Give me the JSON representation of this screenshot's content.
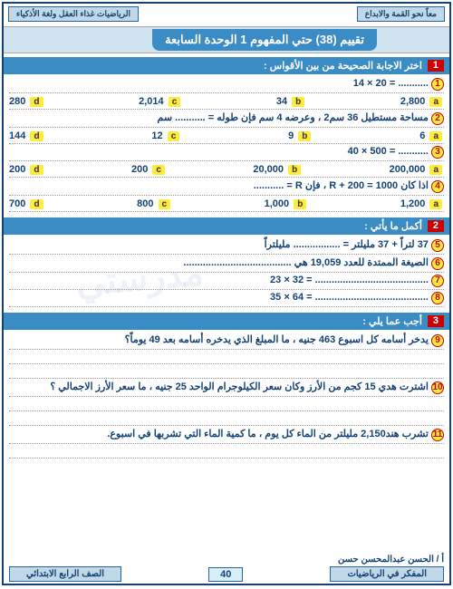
{
  "header": {
    "right": "معاً نحو القمة والابداع",
    "left": "الرياضيات غذاء العقل ولغة الأذكياء"
  },
  "title": "تقييم (38) حتي المفهوم 1 الوحدة السابعة",
  "s1": {
    "num": "1",
    "title": "اختر الاجابة الصحيحة من بين الأقواس :",
    "r1": {
      "n": "1",
      "q": "........... = 20 × 14"
    },
    "r2": {
      "a": "2,800",
      "b": "34",
      "c": "2,014",
      "d": "280"
    },
    "r3": {
      "n": "2",
      "q": "مساحة مستطيل 36 سم2 ، وعرضه 4 سم فإن طوله = ........... سم"
    },
    "r4": {
      "a": "6",
      "b": "9",
      "c": "12",
      "d": "144"
    },
    "r5": {
      "n": "3",
      "q": "........... = 500 × 40"
    },
    "r6": {
      "a": "200,000",
      "b": "20,000",
      "c": "200",
      "d": "200"
    },
    "r7": {
      "n": "4",
      "q": "اذا كان 1000 = R + 200 ، فإن R = ..........."
    },
    "r8": {
      "a": "1,200",
      "b": "1,000",
      "c": "800",
      "d": "700"
    }
  },
  "s2": {
    "num": "2",
    "title": "أكمل ما يأتي :",
    "r1": {
      "n": "5",
      "q": "37 لتراً + 37 مليلتر = ................. مليلتراً"
    },
    "r2": {
      "n": "6",
      "q": "الصيغة الممتدة للعدد 19,059 هي ......................................."
    },
    "r3": {
      "n": "7",
      "q": "......................................... = 32 × 23"
    },
    "r4": {
      "n": "8",
      "q": "......................................... = 64 × 35"
    }
  },
  "s3": {
    "num": "3",
    "title": "أجب عما يلي :",
    "r1": {
      "n": "9",
      "q": "يدخر أسامه كل اسبوع 463 جنيه ، ما المبلغ الذي يدخره أسامه بعد 49 يوماً؟"
    },
    "r2": {
      "n": "10",
      "q": "اشترت هدي 15 كجم من الأرز وكان سعر الكيلوجرام الواحد 25 جنيه ، ما سعر الأرز الاجمالي ؟"
    },
    "r3": {
      "n": "11",
      "q": "تشرب هند2,150 مليلتر من الماء كل يوم ، ما كمية الماء التي تشربها في اسبوع."
    }
  },
  "footer": {
    "author": "أ / الحسن عبدالمحسن حسن",
    "right": "المفكر في الرياضيات",
    "page": "40",
    "left": "الصف الرابع الابتدائي"
  }
}
